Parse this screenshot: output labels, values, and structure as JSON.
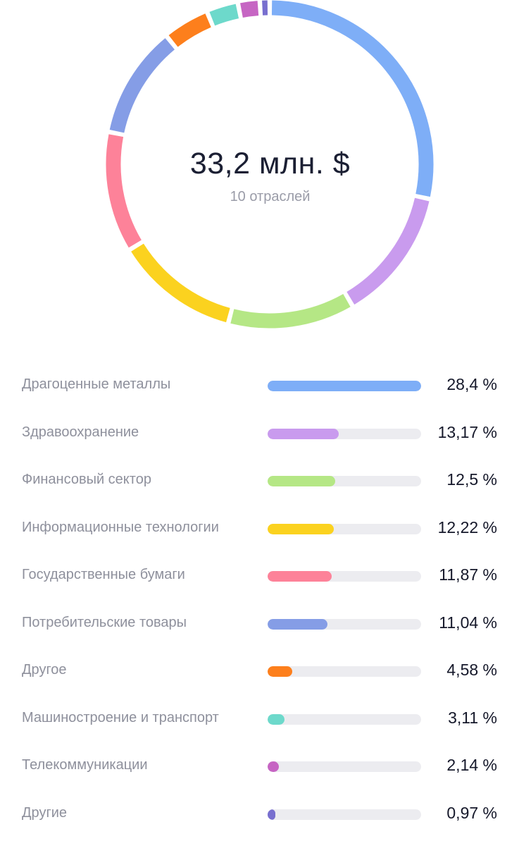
{
  "summary": {
    "total": "33,2 млн. $",
    "subtitle": "10 отраслей"
  },
  "chart_data": {
    "type": "pie",
    "style": "donut",
    "categories": [
      "Драгоценные металлы",
      "Здравоохранение",
      "Финансовый сектор",
      "Информационные технологии",
      "Государственные бумаги",
      "Потребительские товары",
      "Другое",
      "Машиностроение и транспорт",
      "Телекоммуникации",
      "Другие"
    ],
    "values": [
      28.4,
      13.17,
      12.5,
      12.22,
      11.87,
      11.04,
      4.58,
      3.11,
      2.14,
      0.97
    ],
    "value_labels": [
      "28,4 %",
      "13,17 %",
      "12,5 %",
      "12,22 %",
      "11,87 %",
      "11,04 %",
      "4,58 %",
      "3,11 %",
      "2,14 %",
      "0,97 %"
    ],
    "colors": [
      "#7eaef7",
      "#c99bee",
      "#b5e785",
      "#fbd21f",
      "#fd8299",
      "#859de6",
      "#fd7f1c",
      "#6dd9cb",
      "#c665c3",
      "#786fcf"
    ]
  }
}
